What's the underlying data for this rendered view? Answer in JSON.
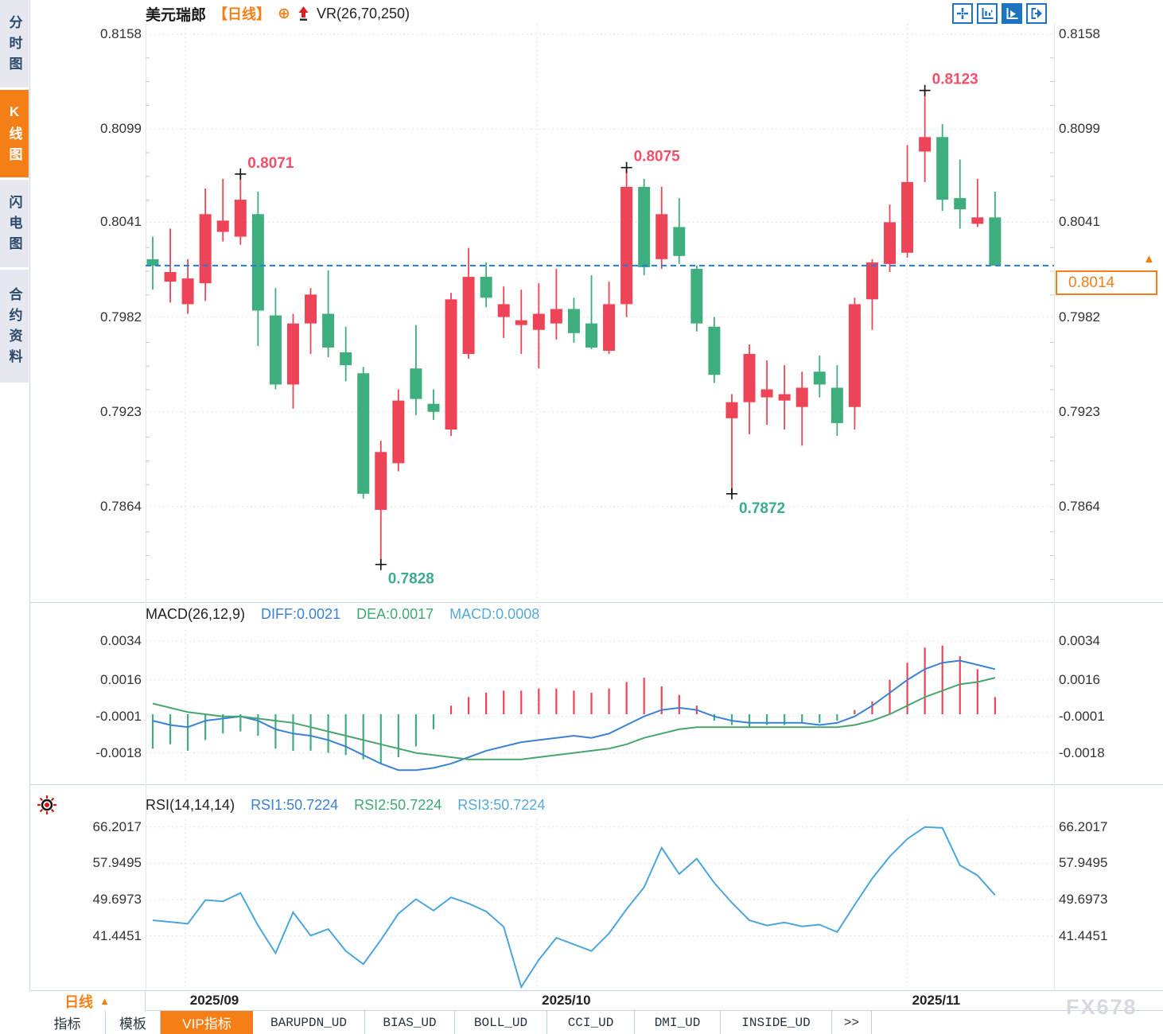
{
  "header": {
    "symbol": "美元瑞郎",
    "period_tag": "【日线】",
    "indicator": "VR(26,70,250)"
  },
  "sidebar": {
    "tabs": [
      {
        "label": "分时图",
        "active": false
      },
      {
        "label": "K线图",
        "active": true
      },
      {
        "label": "闪电图",
        "active": false
      },
      {
        "label": "合约资料",
        "active": false
      }
    ]
  },
  "toolbar": {
    "icons": [
      "crosshair-icon",
      "axis-zoom-icon",
      "axis-play-icon",
      "exit-right-icon"
    ],
    "active_index": 2
  },
  "macd_panel": {
    "title": "MACD(26,12,9)",
    "diff_label": "DIFF:0.0021",
    "dea_label": "DEA:0.0017",
    "macd_label": "MACD:0.0008"
  },
  "rsi_panel": {
    "title": "RSI(14,14,14)",
    "rsi1_label": "RSI1:50.7224",
    "rsi2_label": "RSI2:50.7224",
    "rsi3_label": "RSI3:50.7224"
  },
  "current_price": {
    "value": "0.8014",
    "arrow": "▲"
  },
  "period_button": {
    "label": "日线",
    "arrow": "▲"
  },
  "bottom_tabs": [
    {
      "label": "指标",
      "active": false,
      "mono": false
    },
    {
      "label": "模板",
      "active": false,
      "mono": false
    },
    {
      "label": "VIP指标",
      "active": true,
      "mono": false
    },
    {
      "label": "BARUPDN_UD",
      "active": false,
      "mono": true
    },
    {
      "label": "BIAS_UD",
      "active": false,
      "mono": true
    },
    {
      "label": "BOLL_UD",
      "active": false,
      "mono": true
    },
    {
      "label": "CCI_UD",
      "active": false,
      "mono": true
    },
    {
      "label": "DMI_UD",
      "active": false,
      "mono": true
    },
    {
      "label": "INSIDE_UD",
      "active": false,
      "mono": true
    },
    {
      "label": ">>",
      "active": false,
      "mono": true
    }
  ],
  "watermark": "FX678",
  "colors": {
    "up": "#ee4458",
    "down": "#3fae7f",
    "high_label": "#f0506a",
    "low_label": "#3cab92",
    "diff_line": "#3b82d4",
    "dea_line": "#48a56c",
    "rsi_line": "#4ba6dc",
    "dashed_price": "#1f7ce8",
    "accent": "#f57f17",
    "icon_blue": "#1e74c0",
    "grid": "#dadde6",
    "panel_border": "#c5d6e6",
    "axis_text": "#333333"
  },
  "chart_data": {
    "type": "candlestick",
    "title": "美元瑞郎 USD/CHF",
    "period": "日线 daily",
    "overlay_indicator": "VR(26,70,250)",
    "price_ticks": [
      0.8158,
      0.8099,
      0.8041,
      0.7982,
      0.7923,
      0.7864
    ],
    "current_price": 0.8014,
    "month_gridlines": [
      {
        "label": "2025/09",
        "index": 1.85
      },
      {
        "label": "2025/10",
        "index": 21.9
      },
      {
        "label": "2025/11",
        "index": 43.0
      }
    ],
    "candles_ohlc": [
      [
        0.8018,
        0.8032,
        0.7999,
        0.8014
      ],
      [
        0.8004,
        0.8037,
        0.7991,
        0.801
      ],
      [
        0.799,
        0.8018,
        0.7984,
        0.8006
      ],
      [
        0.8003,
        0.8062,
        0.7992,
        0.8046
      ],
      [
        0.8035,
        0.8068,
        0.8029,
        0.8042
      ],
      [
        0.8032,
        0.8071,
        0.8027,
        0.8055
      ],
      [
        0.8046,
        0.806,
        0.7964,
        0.7986
      ],
      [
        0.7983,
        0.8,
        0.7937,
        0.794
      ],
      [
        0.794,
        0.7984,
        0.7925,
        0.7978
      ],
      [
        0.7978,
        0.8,
        0.7959,
        0.7996
      ],
      [
        0.7984,
        0.8011,
        0.7957,
        0.7963
      ],
      [
        0.796,
        0.7976,
        0.7942,
        0.7952
      ],
      [
        0.7947,
        0.7951,
        0.7869,
        0.7872
      ],
      [
        0.7862,
        0.7905,
        0.7828,
        0.7898
      ],
      [
        0.7891,
        0.7937,
        0.7886,
        0.793
      ],
      [
        0.795,
        0.7977,
        0.7921,
        0.7931
      ],
      [
        0.7928,
        0.7937,
        0.7918,
        0.7923
      ],
      [
        0.7912,
        0.7997,
        0.7908,
        0.7993
      ],
      [
        0.7959,
        0.8025,
        0.7956,
        0.8007
      ],
      [
        0.8007,
        0.8016,
        0.7988,
        0.7994
      ],
      [
        0.7982,
        0.8001,
        0.7969,
        0.799
      ],
      [
        0.7977,
        0.7999,
        0.7959,
        0.798
      ],
      [
        0.7974,
        0.8003,
        0.795,
        0.7984
      ],
      [
        0.7978,
        0.8012,
        0.7968,
        0.7987
      ],
      [
        0.7987,
        0.7994,
        0.7966,
        0.7972
      ],
      [
        0.7978,
        0.8008,
        0.7962,
        0.7963
      ],
      [
        0.7961,
        0.8004,
        0.7959,
        0.799
      ],
      [
        0.799,
        0.8075,
        0.7982,
        0.8063
      ],
      [
        0.8063,
        0.8068,
        0.8008,
        0.8013
      ],
      [
        0.8018,
        0.8063,
        0.8012,
        0.8046
      ],
      [
        0.8038,
        0.8056,
        0.8015,
        0.802
      ],
      [
        0.8012,
        0.8014,
        0.7973,
        0.7978
      ],
      [
        0.7976,
        0.7982,
        0.7941,
        0.7946
      ],
      [
        0.7919,
        0.7934,
        0.7872,
        0.7929
      ],
      [
        0.7929,
        0.7965,
        0.7909,
        0.7959
      ],
      [
        0.7932,
        0.7955,
        0.7915,
        0.7937
      ],
      [
        0.793,
        0.7952,
        0.7912,
        0.7934
      ],
      [
        0.7926,
        0.7948,
        0.7902,
        0.7938
      ],
      [
        0.7948,
        0.7958,
        0.7932,
        0.794
      ],
      [
        0.7938,
        0.7952,
        0.7908,
        0.7916
      ],
      [
        0.7926,
        0.7994,
        0.7912,
        0.799
      ],
      [
        0.7993,
        0.8018,
        0.7974,
        0.8016
      ],
      [
        0.8015,
        0.8052,
        0.801,
        0.8041
      ],
      [
        0.8022,
        0.8089,
        0.8019,
        0.8066
      ],
      [
        0.8085,
        0.8123,
        0.8066,
        0.8094
      ],
      [
        0.8094,
        0.8102,
        0.8048,
        0.8055
      ],
      [
        0.8056,
        0.808,
        0.8037,
        0.8049
      ],
      [
        0.804,
        0.8068,
        0.8038,
        0.8044
      ],
      [
        0.8044,
        0.806,
        0.8014,
        0.8014
      ]
    ],
    "annotations": [
      {
        "index": 5,
        "text": "0.8071",
        "kind": "high"
      },
      {
        "index": 13,
        "text": "0.7828",
        "kind": "low"
      },
      {
        "index": 27,
        "text": "0.8075",
        "kind": "high"
      },
      {
        "index": 33,
        "text": "0.7872",
        "kind": "low"
      },
      {
        "index": 44,
        "text": "0.8123",
        "kind": "high"
      }
    ],
    "macd": {
      "ticks": [
        0.0034,
        0.0016,
        -0.0001,
        -0.0018
      ],
      "diff_last": 0.0021,
      "dea_last": 0.0017,
      "macd_last": 0.0008,
      "hist_1e4": [
        -16,
        -14,
        -17,
        -12,
        -9,
        -8,
        -10,
        -16,
        -17,
        -17,
        -18,
        -19,
        -21,
        -23,
        -20,
        -15,
        -7,
        4,
        8,
        10,
        11,
        11,
        12,
        12,
        11,
        10,
        12,
        15,
        17,
        13,
        9,
        4,
        -3,
        -5,
        -6,
        -5,
        -5,
        -4,
        -4,
        -3,
        2,
        6,
        16,
        24,
        31,
        32,
        27,
        21,
        8
      ],
      "diff_1e4": [
        -3,
        -5,
        -6,
        -3,
        -2,
        -1,
        -3,
        -7,
        -9,
        -10,
        -12,
        -15,
        -19,
        -23,
        -26,
        -26,
        -25,
        -23,
        -20,
        -17,
        -15,
        -13,
        -12,
        -11,
        -10,
        -11,
        -9,
        -5,
        -1,
        2,
        3,
        2,
        -1,
        -3,
        -4,
        -4,
        -4,
        -4,
        -5,
        -4,
        -1,
        4,
        10,
        16,
        21,
        24,
        25,
        23,
        21
      ],
      "dea_1e4": [
        5,
        3,
        1,
        0,
        -1,
        -1,
        -2,
        -3,
        -4,
        -6,
        -8,
        -10,
        -12,
        -14,
        -16,
        -18,
        -19,
        -20,
        -21,
        -21,
        -21,
        -21,
        -20,
        -19,
        -18,
        -17,
        -16,
        -14,
        -11,
        -9,
        -7,
        -6,
        -6,
        -6,
        -6,
        -6,
        -6,
        -6,
        -6,
        -6,
        -5,
        -3,
        0,
        4,
        8,
        11,
        14,
        15,
        17
      ]
    },
    "rsi": {
      "ticks": [
        66.2017,
        57.9495,
        49.6973,
        41.4451
      ],
      "values": [
        45.0,
        44.6,
        44.2,
        49.6,
        49.3,
        51.2,
        43.8,
        37.5,
        46.8,
        41.5,
        43.0,
        38.0,
        35.0,
        40.5,
        46.5,
        49.8,
        47.2,
        50.2,
        48.8,
        47.0,
        43.5,
        29.8,
        36.0,
        41.0,
        39.5,
        38.0,
        42.0,
        47.5,
        52.5,
        61.5,
        55.5,
        59.0,
        53.5,
        49.0,
        45.0,
        43.8,
        44.5,
        43.6,
        44.0,
        42.3,
        48.5,
        54.5,
        59.5,
        63.5,
        66.2,
        66.0,
        57.5,
        55.2,
        50.7
      ]
    }
  }
}
